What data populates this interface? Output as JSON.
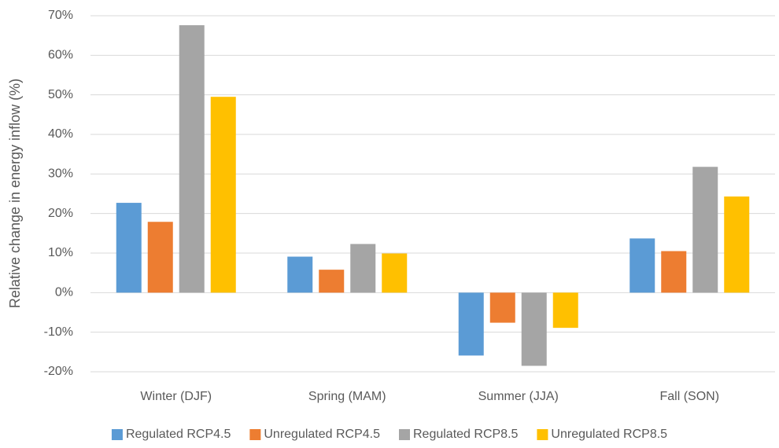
{
  "chart_data": {
    "type": "bar",
    "y_label": "Relative change in energy inflow (%)",
    "categories": [
      "Winter (DJF)",
      "Spring (MAM)",
      "Summer (JJA)",
      "Fall (SON)"
    ],
    "series": [
      {
        "name": "Regulated RCP4.5",
        "color": "#5b9bd5",
        "values": [
          22.7,
          9.1,
          -15.9,
          13.7
        ]
      },
      {
        "name": "Unregulated RCP4.5",
        "color": "#ed7d31",
        "values": [
          17.9,
          5.8,
          -7.6,
          10.5
        ]
      },
      {
        "name": "Regulated RCP8.5",
        "color": "#a5a5a5",
        "values": [
          67.6,
          12.3,
          -18.5,
          31.8
        ]
      },
      {
        "name": "Unregulated RCP8.5",
        "color": "#ffc000",
        "values": [
          49.5,
          9.9,
          -8.9,
          24.3
        ]
      }
    ],
    "ylim": [
      -20,
      70
    ],
    "yticks": [
      {
        "value": -20,
        "label": "-20%"
      },
      {
        "value": -10,
        "label": "-10%"
      },
      {
        "value": 0,
        "label": "0%"
      },
      {
        "value": 10,
        "label": "10%"
      },
      {
        "value": 20,
        "label": "20%"
      },
      {
        "value": 30,
        "label": "30%"
      },
      {
        "value": 40,
        "label": "40%"
      },
      {
        "value": 50,
        "label": "50%"
      },
      {
        "value": 60,
        "label": "60%"
      },
      {
        "value": 70,
        "label": "70%"
      }
    ],
    "grid": true,
    "legend": "bottom"
  }
}
